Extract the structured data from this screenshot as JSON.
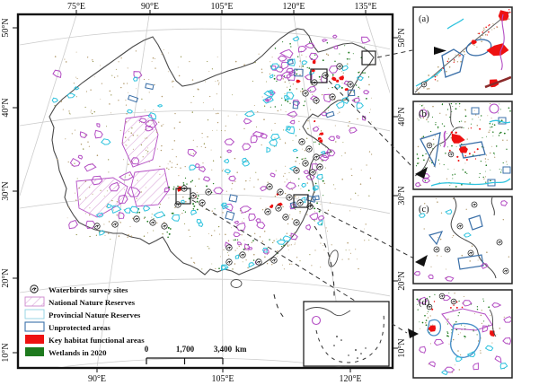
{
  "map": {
    "top_labels": [
      {
        "t": "75°E"
      },
      {
        "t": "90°E"
      },
      {
        "t": "105°E"
      },
      {
        "t": "120°E"
      },
      {
        "t": "135°E"
      }
    ],
    "bottom_labels": [
      {
        "t": "90°E"
      },
      {
        "t": "105°E"
      },
      {
        "t": "120°E"
      }
    ],
    "left_labels": [
      "50°N",
      "40°N",
      "30°N",
      "20°N",
      "10°N"
    ],
    "right_labels": [
      "50°N",
      "40°N",
      "30°N",
      "20°N",
      "10°N"
    ]
  },
  "legend": {
    "items": [
      {
        "label": "Waterbirds survey sites",
        "swatch": "survey-site"
      },
      {
        "label": "National Nature Reserves",
        "swatch": "national-hatched"
      },
      {
        "label": "Provincial Nature Reserves",
        "swatch": "provincial-outline"
      },
      {
        "label": "Unprotected areas",
        "swatch": "unprotected-outline"
      },
      {
        "label": "Key habitat functional areas",
        "swatch": "red-fill"
      },
      {
        "label": "Wetlands in 2020",
        "swatch": "green-fill"
      }
    ]
  },
  "scalebar": {
    "start": "0",
    "mid": "1,700",
    "end": "3,400",
    "unit": "km"
  },
  "panels": [
    {
      "label": "(a)"
    },
    {
      "label": "(b)"
    },
    {
      "label": "(c)"
    },
    {
      "label": "(d)"
    }
  ],
  "colors": {
    "national": "#b44fc4",
    "national_light": "#cc85cc",
    "provincial": "#2fc3de",
    "provincial_light": "#8fd2e2",
    "unprotected": "#3a6fa8",
    "key_habitat": "#ee1111",
    "wetlands": "#1e7a1e",
    "frame": "#111111",
    "graticule": "#cccccc",
    "boundary": "#4a4a4a",
    "dust": "#b39b6d",
    "olive": "#8a8a3a",
    "maroon": "#8b2a2a"
  }
}
